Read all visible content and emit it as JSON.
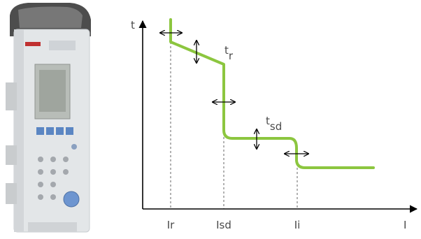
{
  "axes": {
    "y_label": "t",
    "x_label": "I"
  },
  "tick_labels": [
    "Ir",
    "Isd",
    "Ii"
  ],
  "parameters": {
    "tr": {
      "base": "t",
      "sub": "r"
    },
    "tsd": {
      "base": "t",
      "sub": "sd"
    }
  },
  "colors": {
    "curve": "#8cc63f",
    "axis": "#000000",
    "guide": "#666666",
    "text": "#4a4a4a",
    "device_body": "#e3e6e8",
    "device_buttons": "#5b86c3"
  },
  "icons": {
    "adjust": "double-headed-arrow-icon",
    "device": "circuit-breaker-trip-unit"
  }
}
